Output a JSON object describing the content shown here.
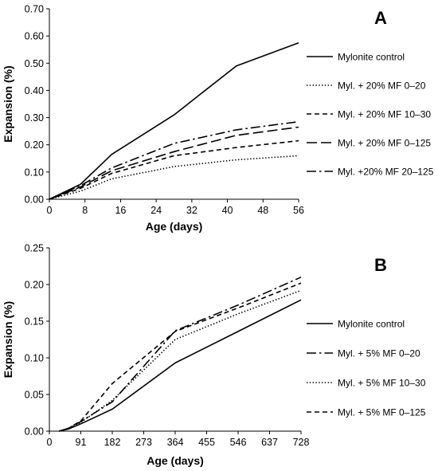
{
  "chart_data": [
    {
      "type": "line",
      "panel_label": "A",
      "xlabel": "Age (days)",
      "ylabel": "Expansion (%)",
      "xlim": [
        0,
        56
      ],
      "ylim": [
        0,
        0.7
      ],
      "x_ticks": [
        0,
        8,
        16,
        24,
        32,
        40,
        48,
        56
      ],
      "y_ticks": [
        "0.00",
        "0.10",
        "0.20",
        "0.30",
        "0.40",
        "0.50",
        "0.60",
        "0.70"
      ],
      "grid": false,
      "legend_position": "right",
      "series": [
        {
          "name": "Mylonite control",
          "dash": "solid",
          "x": [
            0,
            7,
            14,
            28,
            42,
            56
          ],
          "y": [
            0,
            0.055,
            0.165,
            0.31,
            0.49,
            0.575
          ]
        },
        {
          "name": "Myl. + 20% MF 0–20",
          "dash": "dotted",
          "x": [
            0,
            7,
            14,
            28,
            42,
            56
          ],
          "y": [
            0,
            0.03,
            0.075,
            0.12,
            0.145,
            0.16
          ]
        },
        {
          "name": "Myl. + 20% MF 10–30",
          "dash": "dashed",
          "x": [
            0,
            7,
            14,
            28,
            42,
            56
          ],
          "y": [
            0,
            0.04,
            0.095,
            0.16,
            0.19,
            0.215
          ]
        },
        {
          "name": "Myl. + 20% MF 0–125",
          "dash": "longdash",
          "x": [
            0,
            7,
            14,
            28,
            42,
            56
          ],
          "y": [
            0,
            0.045,
            0.105,
            0.175,
            0.235,
            0.265
          ]
        },
        {
          "name": "Myl. +20% MF 20–125",
          "dash": "dashdot",
          "x": [
            0,
            7,
            14,
            28,
            42,
            56
          ],
          "y": [
            0,
            0.05,
            0.115,
            0.205,
            0.255,
            0.285
          ]
        }
      ]
    },
    {
      "type": "line",
      "panel_label": "B",
      "xlabel": "Age (days)",
      "ylabel": "Expansion (%)",
      "xlim": [
        0,
        728
      ],
      "ylim": [
        0,
        0.25
      ],
      "x_ticks": [
        0,
        91,
        182,
        273,
        364,
        455,
        546,
        637,
        728
      ],
      "y_ticks": [
        "0.00",
        "0.05",
        "0.10",
        "0.15",
        "0.20",
        "0.25"
      ],
      "grid": false,
      "legend_position": "right",
      "series": [
        {
          "name": "Mylonite control",
          "dash": "solid",
          "x": [
            28,
            56,
            91,
            182,
            364,
            546,
            728
          ],
          "y": [
            0,
            0.003,
            0.01,
            0.03,
            0.093,
            0.136,
            0.179
          ]
        },
        {
          "name": "Myl. + 5% MF 0–20",
          "dash": "dashdot",
          "x": [
            28,
            56,
            91,
            182,
            364,
            546,
            728
          ],
          "y": [
            0,
            0.004,
            0.013,
            0.04,
            0.137,
            0.172,
            0.21
          ]
        },
        {
          "name": "Myl. + 5% MF 10–30",
          "dash": "dotted",
          "x": [
            28,
            56,
            91,
            182,
            364,
            546,
            728
          ],
          "y": [
            0,
            0.004,
            0.012,
            0.042,
            0.125,
            0.16,
            0.192
          ]
        },
        {
          "name": "Myl. + 5% MF 0–125",
          "dash": "dashed",
          "x": [
            28,
            56,
            91,
            182,
            364,
            546,
            728
          ],
          "y": [
            0,
            0.004,
            0.014,
            0.065,
            0.136,
            0.168,
            0.202
          ]
        }
      ]
    }
  ]
}
